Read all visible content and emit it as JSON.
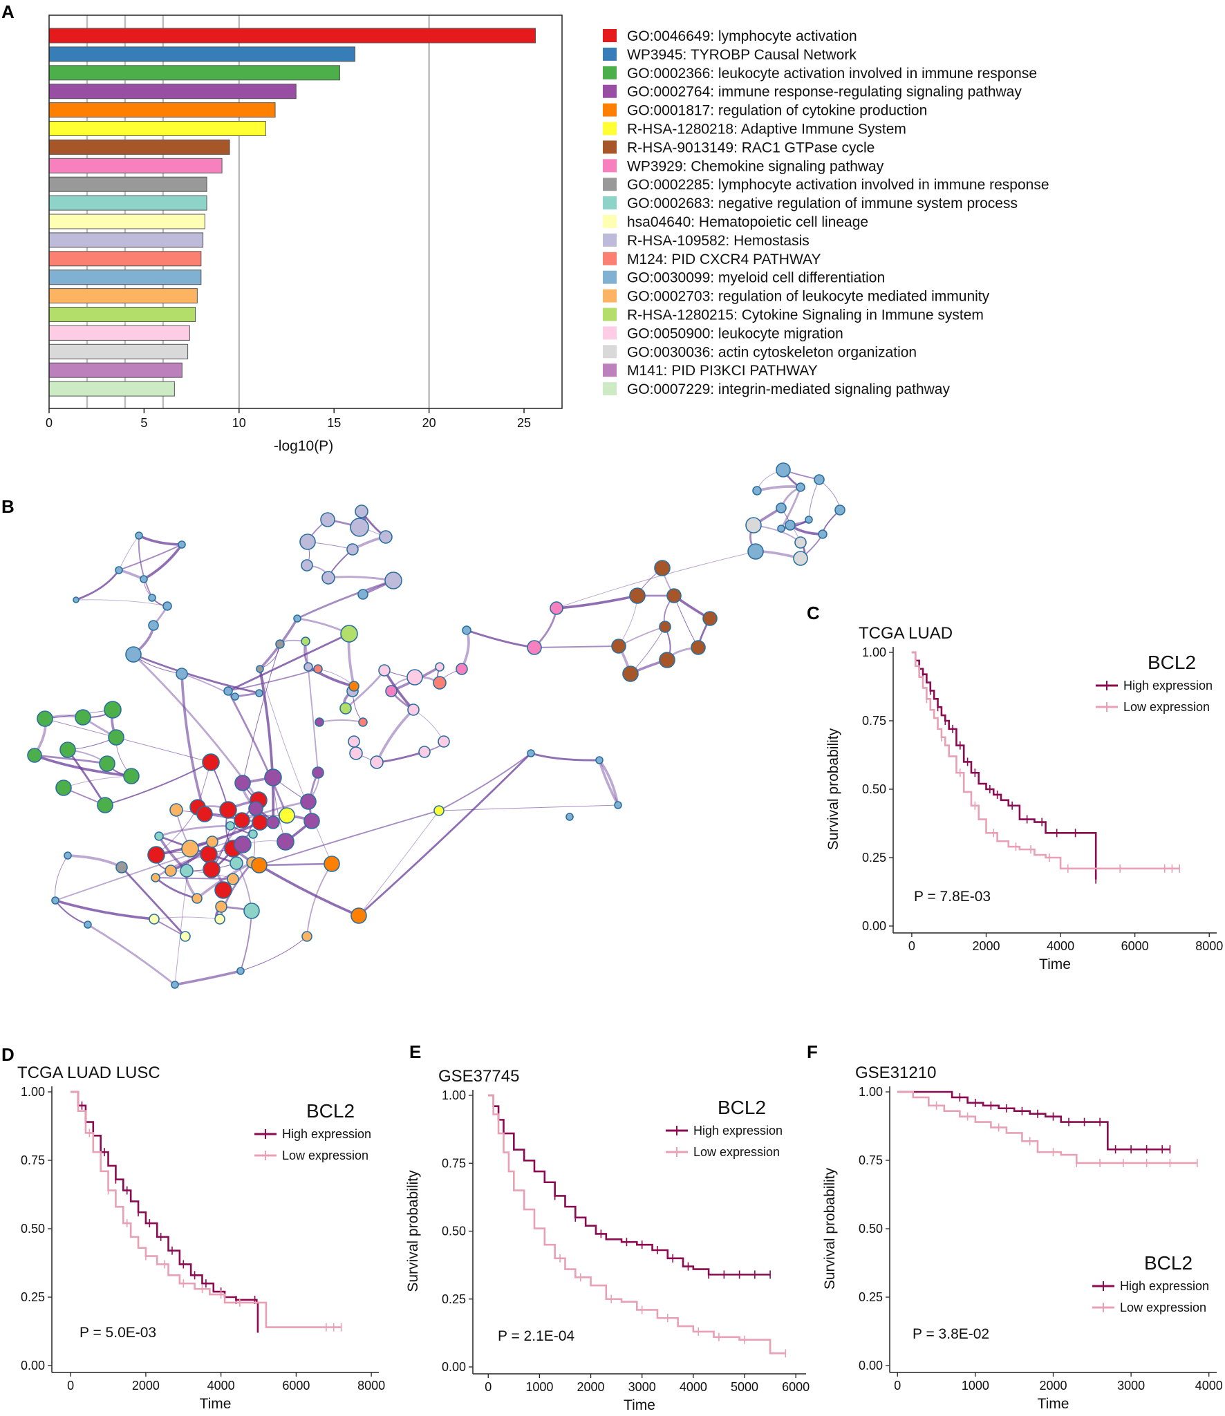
{
  "panels": {
    "A": "A",
    "B": "B",
    "C": "C",
    "D": "D",
    "E": "E",
    "F": "F"
  },
  "colors": {
    "high": "#8B0A50",
    "low": "#E8A0B4",
    "network_edge": "#6A3D9A"
  },
  "chart_data": [
    {
      "id": "A",
      "type": "bar",
      "orientation": "horizontal",
      "xlabel": "-log10(P)",
      "xlim": [
        0,
        27
      ],
      "xticks": [
        0,
        5,
        10,
        15,
        20,
        25
      ],
      "xtick_labels": [
        "0",
        "5",
        "10",
        "15",
        "20",
        "25"
      ],
      "gridlines": [
        2,
        4,
        6,
        10,
        20
      ],
      "categories": [
        "GO:0046649: lymphocyte activation",
        "WP3945: TYROBP Causal Network",
        "GO:0002366: leukocyte activation involved in immune response",
        "GO:0002764: immune response-regulating signaling pathway",
        "GO:0001817: regulation of cytokine production",
        "R-HSA-1280218: Adaptive Immune System",
        "R-HSA-9013149: RAC1 GTPase cycle",
        "WP3929: Chemokine signaling pathway",
        "GO:0002285: lymphocyte activation involved in immune response",
        "GO:0002683: negative regulation of immune system process",
        "hsa04640: Hematopoietic cell lineage",
        "R-HSA-109582: Hemostasis",
        "M124: PID CXCR4 PATHWAY",
        "GO:0030099: myeloid cell differentiation",
        "GO:0002703: regulation of leukocyte mediated immunity",
        "R-HSA-1280215: Cytokine Signaling in Immune system",
        "GO:0050900: leukocyte migration",
        "GO:0030036: actin cytoskeleton organization",
        "M141: PID PI3KCI PATHWAY",
        "GO:0007229: integrin-mediated signaling pathway"
      ],
      "values": [
        25.6,
        16.1,
        15.3,
        13.0,
        11.9,
        11.4,
        9.5,
        9.1,
        8.3,
        8.3,
        8.2,
        8.1,
        8.0,
        8.0,
        7.8,
        7.7,
        7.4,
        7.3,
        7.0,
        6.6
      ],
      "colors": [
        "#E41A1C",
        "#377EB8",
        "#4DAF4A",
        "#984EA3",
        "#FF7F00",
        "#FFFF33",
        "#A65628",
        "#F781BF",
        "#999999",
        "#8DD3C7",
        "#FFFFB3",
        "#BEBADA",
        "#FB8072",
        "#80B1D3",
        "#FDB462",
        "#B3DE69",
        "#FCCDE5",
        "#D9D9D9",
        "#BC80BD",
        "#CCEBC5"
      ]
    },
    {
      "id": "C",
      "type": "line",
      "subtype": "kaplan-meier",
      "title": "TCGA LUAD",
      "gene": "BCL2",
      "xlabel": "Time",
      "ylabel": "Survival probability",
      "xlim": [
        -500,
        8200
      ],
      "ylim": [
        0,
        1.0
      ],
      "xticks": [
        0,
        2000,
        4000,
        6000,
        8000
      ],
      "yticks": [
        0,
        0.25,
        0.5,
        0.75,
        1.0
      ],
      "ytick_labels": [
        "0.00",
        "0.25",
        "0.50",
        "0.75",
        "1.00"
      ],
      "pvalue": "P = 7.8E-03",
      "series": [
        {
          "name": "High expression",
          "color": "#8B0A50",
          "x": [
            0,
            100,
            200,
            300,
            400,
            500,
            600,
            700,
            800,
            900,
            1000,
            1200,
            1400,
            1600,
            1800,
            2000,
            2200,
            2400,
            2600,
            2900,
            3300,
            3600,
            4000,
            4400,
            4900,
            4950
          ],
          "y": [
            1.0,
            0.97,
            0.94,
            0.92,
            0.89,
            0.86,
            0.83,
            0.8,
            0.77,
            0.75,
            0.72,
            0.66,
            0.6,
            0.56,
            0.52,
            0.5,
            0.48,
            0.46,
            0.44,
            0.39,
            0.38,
            0.34,
            0.34,
            0.34,
            0.34,
            0.17
          ],
          "censor_x": [
            300,
            500,
            700,
            900,
            1100,
            1300,
            1500,
            1700,
            2100,
            2300,
            2700,
            3100,
            3500,
            3900,
            4400,
            4950
          ]
        },
        {
          "name": "Low expression",
          "color": "#E8A0B4",
          "x": [
            0,
            100,
            200,
            300,
            400,
            500,
            600,
            700,
            800,
            900,
            1000,
            1200,
            1400,
            1600,
            1800,
            2000,
            2300,
            2600,
            2900,
            3300,
            3600,
            4000,
            5000,
            6000,
            7200
          ],
          "y": [
            1.0,
            0.95,
            0.91,
            0.87,
            0.83,
            0.79,
            0.76,
            0.72,
            0.69,
            0.66,
            0.62,
            0.56,
            0.49,
            0.44,
            0.39,
            0.34,
            0.31,
            0.29,
            0.28,
            0.26,
            0.25,
            0.21,
            0.21,
            0.21,
            0.21
          ],
          "censor_x": [
            400,
            800,
            1300,
            1700,
            2200,
            2800,
            3200,
            3700,
            4200,
            5600,
            6800,
            7000,
            7200
          ]
        }
      ]
    },
    {
      "id": "D",
      "type": "line",
      "subtype": "kaplan-meier",
      "title": "TCGA LUAD LUSC",
      "gene": "BCL2",
      "xlabel": "Time",
      "ylabel": "Survival probability",
      "xlim": [
        -500,
        8200
      ],
      "ylim": [
        0,
        1.0
      ],
      "xticks": [
        0,
        2000,
        4000,
        6000,
        8000
      ],
      "yticks": [
        0,
        0.25,
        0.5,
        0.75,
        1.0
      ],
      "ytick_labels": [
        "0.00",
        "0.25",
        "0.50",
        "0.75",
        "1.00"
      ],
      "pvalue": "P = 5.0E-03",
      "series": [
        {
          "name": "High expression",
          "color": "#8B0A50",
          "x": [
            0,
            200,
            400,
            600,
            800,
            1000,
            1200,
            1400,
            1600,
            1800,
            2000,
            2300,
            2600,
            2900,
            3200,
            3500,
            3800,
            4100,
            4400,
            4950,
            4980
          ],
          "y": [
            1.0,
            0.95,
            0.89,
            0.84,
            0.78,
            0.73,
            0.68,
            0.64,
            0.6,
            0.56,
            0.52,
            0.47,
            0.42,
            0.37,
            0.33,
            0.3,
            0.27,
            0.25,
            0.24,
            0.23,
            0.12
          ],
          "censor_x": [
            300,
            600,
            900,
            1200,
            1500,
            1800,
            2100,
            2400,
            2700,
            3000,
            3300,
            3600,
            4000,
            4400,
            4900
          ]
        },
        {
          "name": "Low expression",
          "color": "#E8A0B4",
          "x": [
            0,
            200,
            400,
            600,
            800,
            1000,
            1200,
            1400,
            1600,
            1800,
            2000,
            2300,
            2600,
            2900,
            3300,
            3700,
            4100,
            4600,
            5200,
            6000,
            7200
          ],
          "y": [
            1.0,
            0.93,
            0.85,
            0.78,
            0.71,
            0.64,
            0.58,
            0.52,
            0.47,
            0.43,
            0.4,
            0.37,
            0.33,
            0.3,
            0.28,
            0.26,
            0.23,
            0.23,
            0.14,
            0.14,
            0.14
          ],
          "censor_x": [
            500,
            1000,
            1500,
            2000,
            2500,
            3000,
            3500,
            4000,
            4500,
            6800,
            7000,
            7200
          ]
        }
      ]
    },
    {
      "id": "E",
      "type": "line",
      "subtype": "kaplan-meier",
      "title": "GSE37745",
      "gene": "BCL2",
      "xlabel": "Time",
      "ylabel": "Survival probability",
      "xlim": [
        -300,
        6200
      ],
      "ylim": [
        0,
        1.0
      ],
      "xticks": [
        0,
        1000,
        2000,
        3000,
        4000,
        5000,
        6000
      ],
      "yticks": [
        0,
        0.25,
        0.5,
        0.75,
        1.0
      ],
      "ytick_labels": [
        "0.00",
        "0.25",
        "0.50",
        "0.75",
        "1.00"
      ],
      "pvalue": "P = 2.1E-04",
      "series": [
        {
          "name": "High expression",
          "color": "#8B0A50",
          "x": [
            0,
            100,
            200,
            300,
            500,
            700,
            900,
            1100,
            1300,
            1500,
            1700,
            1900,
            2100,
            2300,
            2600,
            2900,
            3200,
            3500,
            3800,
            4000,
            4300,
            4700,
            5000,
            5500
          ],
          "y": [
            1.0,
            0.96,
            0.91,
            0.86,
            0.8,
            0.76,
            0.72,
            0.68,
            0.63,
            0.59,
            0.55,
            0.52,
            0.49,
            0.47,
            0.46,
            0.45,
            0.43,
            0.4,
            0.37,
            0.36,
            0.34,
            0.34,
            0.34,
            0.34
          ],
          "censor_x": [
            1300,
            1700,
            2200,
            2700,
            3000,
            3300,
            3600,
            3900,
            4300,
            4600,
            4900,
            5200,
            5500
          ]
        },
        {
          "name": "Low expression",
          "color": "#E8A0B4",
          "x": [
            0,
            100,
            200,
            300,
            400,
            500,
            700,
            900,
            1100,
            1300,
            1500,
            1700,
            2000,
            2300,
            2600,
            2900,
            3300,
            3700,
            4000,
            4400,
            4900,
            5300,
            5500,
            5800
          ],
          "y": [
            1.0,
            0.93,
            0.86,
            0.79,
            0.72,
            0.65,
            0.58,
            0.51,
            0.45,
            0.4,
            0.36,
            0.33,
            0.3,
            0.25,
            0.24,
            0.21,
            0.18,
            0.15,
            0.13,
            0.11,
            0.1,
            0.1,
            0.05,
            0.05
          ],
          "censor_x": [
            1400,
            1800,
            2400,
            3000,
            3500,
            4100,
            4500,
            5000,
            5800
          ]
        }
      ]
    },
    {
      "id": "F",
      "type": "line",
      "subtype": "kaplan-meier",
      "title": "GSE31210",
      "gene": "BCL2",
      "xlabel": "Time",
      "ylabel": "Survival probability",
      "xlim": [
        -100,
        4100
      ],
      "ylim": [
        0,
        1.0
      ],
      "xticks": [
        0,
        1000,
        2000,
        3000,
        4000
      ],
      "yticks": [
        0,
        0.25,
        0.5,
        0.75,
        1.0
      ],
      "ytick_labels": [
        "0.00",
        "0.25",
        "0.50",
        "0.75",
        "1.00"
      ],
      "pvalue": "P = 3.8E-02",
      "series": [
        {
          "name": "High expression",
          "color": "#8B0A50",
          "x": [
            0,
            500,
            700,
            900,
            1100,
            1300,
            1500,
            1700,
            1900,
            2100,
            2300,
            2500,
            2650,
            2700,
            3000,
            3500
          ],
          "y": [
            1.0,
            1.0,
            0.98,
            0.96,
            0.95,
            0.94,
            0.93,
            0.92,
            0.91,
            0.89,
            0.89,
            0.89,
            0.89,
            0.79,
            0.79,
            0.79
          ],
          "censor_x": [
            800,
            1000,
            1200,
            1400,
            1600,
            1800,
            2000,
            2200,
            2400,
            2600,
            2800,
            3000,
            3200,
            3400,
            3500
          ]
        },
        {
          "name": "Low expression",
          "color": "#E8A0B4",
          "x": [
            0,
            200,
            400,
            600,
            800,
            1000,
            1200,
            1400,
            1600,
            1800,
            2000,
            2100,
            2300,
            2700,
            3200,
            3850
          ],
          "y": [
            1.0,
            0.98,
            0.95,
            0.93,
            0.91,
            0.89,
            0.87,
            0.85,
            0.82,
            0.78,
            0.78,
            0.77,
            0.74,
            0.74,
            0.74,
            0.74
          ],
          "censor_x": [
            500,
            900,
            1300,
            1700,
            2000,
            2300,
            2600,
            2900,
            3200,
            3500,
            3850
          ]
        }
      ]
    }
  ]
}
